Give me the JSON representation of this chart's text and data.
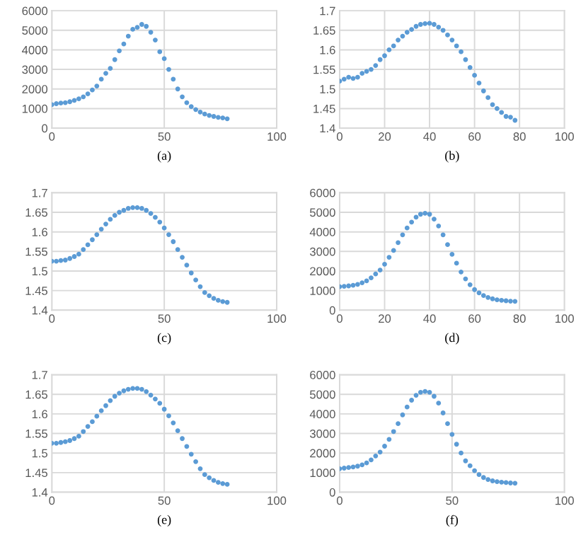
{
  "chart_data": [
    {
      "type": "scatter",
      "xlabel": "(a)",
      "x": [
        0,
        2,
        4,
        6,
        8,
        10,
        12,
        14,
        16,
        18,
        20,
        22,
        24,
        26,
        28,
        30,
        32,
        34,
        36,
        38,
        40,
        42,
        44,
        46,
        48,
        50,
        52,
        54,
        56,
        58,
        60,
        62,
        64,
        66,
        68,
        70,
        72,
        74,
        76,
        78
      ],
      "series": [
        {
          "color": "#5b9bd5",
          "values": [
            1200,
            1250,
            1280,
            1300,
            1350,
            1420,
            1500,
            1600,
            1750,
            1950,
            2150,
            2500,
            2800,
            3050,
            3500,
            3950,
            4300,
            4700,
            5050,
            5150,
            5300,
            5200,
            4900,
            4500,
            3900,
            3550,
            3000,
            2500,
            2000,
            1600,
            1300,
            1100,
            950,
            820,
            720,
            650,
            600,
            550,
            520,
            480
          ]
        }
      ],
      "xlim": [
        0,
        100
      ],
      "xticks": [
        0,
        50,
        100
      ],
      "ylim": [
        0,
        6000
      ],
      "yticks": [
        0,
        1000,
        2000,
        3000,
        4000,
        5000,
        6000
      ],
      "grid": true,
      "marker": "circle"
    },
    {
      "type": "scatter",
      "xlabel": "(b)",
      "x": [
        0,
        2,
        4,
        6,
        8,
        10,
        12,
        14,
        16,
        18,
        20,
        22,
        24,
        26,
        28,
        30,
        32,
        34,
        36,
        38,
        40,
        42,
        44,
        46,
        48,
        50,
        52,
        54,
        56,
        58,
        60,
        62,
        64,
        66,
        68,
        70,
        72,
        74,
        76,
        78
      ],
      "series": [
        {
          "color": "#5b9bd5",
          "values": [
            1.52,
            1.525,
            1.53,
            1.527,
            1.53,
            1.54,
            1.545,
            1.55,
            1.56,
            1.575,
            1.585,
            1.6,
            1.61,
            1.625,
            1.635,
            1.645,
            1.652,
            1.66,
            1.665,
            1.667,
            1.668,
            1.665,
            1.658,
            1.65,
            1.638,
            1.625,
            1.61,
            1.595,
            1.575,
            1.555,
            1.535,
            1.515,
            1.495,
            1.478,
            1.46,
            1.45,
            1.44,
            1.43,
            1.428,
            1.42
          ]
        }
      ],
      "xlim": [
        0,
        100
      ],
      "xticks": [
        0,
        20,
        40,
        60,
        80,
        100
      ],
      "ylim": [
        1.4,
        1.7
      ],
      "yticks": [
        1.4,
        1.45,
        1.5,
        1.55,
        1.6,
        1.65,
        1.7
      ],
      "grid": true,
      "marker": "circle"
    },
    {
      "type": "scatter",
      "xlabel": "(c)",
      "x": [
        0,
        2,
        4,
        6,
        8,
        10,
        12,
        14,
        16,
        18,
        20,
        22,
        24,
        26,
        28,
        30,
        32,
        34,
        36,
        38,
        40,
        42,
        44,
        46,
        48,
        50,
        52,
        54,
        56,
        58,
        60,
        62,
        64,
        66,
        68,
        70,
        72,
        74,
        76,
        78
      ],
      "series": [
        {
          "color": "#5b9bd5",
          "values": [
            1.525,
            1.525,
            1.527,
            1.528,
            1.532,
            1.537,
            1.543,
            1.555,
            1.567,
            1.58,
            1.593,
            1.607,
            1.62,
            1.632,
            1.642,
            1.65,
            1.655,
            1.66,
            1.662,
            1.662,
            1.66,
            1.655,
            1.647,
            1.637,
            1.625,
            1.61,
            1.593,
            1.575,
            1.555,
            1.535,
            1.515,
            1.495,
            1.477,
            1.46,
            1.445,
            1.437,
            1.43,
            1.425,
            1.422,
            1.42
          ]
        }
      ],
      "xlim": [
        0,
        100
      ],
      "xticks": [
        0,
        50,
        100
      ],
      "ylim": [
        1.4,
        1.7
      ],
      "yticks": [
        1.4,
        1.45,
        1.5,
        1.55,
        1.6,
        1.65,
        1.7
      ],
      "grid": true,
      "marker": "circle"
    },
    {
      "type": "scatter",
      "xlabel": "(d)",
      "x": [
        0,
        2,
        4,
        6,
        8,
        10,
        12,
        14,
        16,
        18,
        20,
        22,
        24,
        26,
        28,
        30,
        32,
        34,
        36,
        38,
        40,
        42,
        44,
        46,
        48,
        50,
        52,
        54,
        56,
        58,
        60,
        62,
        64,
        66,
        68,
        70,
        72,
        74,
        76,
        78
      ],
      "series": [
        {
          "color": "#5b9bd5",
          "values": [
            1200,
            1220,
            1240,
            1270,
            1320,
            1400,
            1500,
            1650,
            1850,
            2050,
            2350,
            2700,
            3050,
            3450,
            3850,
            4200,
            4500,
            4750,
            4900,
            4950,
            4900,
            4650,
            4300,
            3850,
            3350,
            2850,
            2400,
            1950,
            1600,
            1300,
            1050,
            880,
            750,
            650,
            580,
            530,
            500,
            480,
            460,
            450
          ]
        }
      ],
      "xlim": [
        0,
        100
      ],
      "xticks": [
        0,
        20,
        40,
        60,
        80,
        100
      ],
      "ylim": [
        0,
        6000
      ],
      "yticks": [
        0,
        1000,
        2000,
        3000,
        4000,
        5000,
        6000
      ],
      "grid": true,
      "marker": "circle"
    },
    {
      "type": "scatter",
      "xlabel": "(e)",
      "x": [
        0,
        2,
        4,
        6,
        8,
        10,
        12,
        14,
        16,
        18,
        20,
        22,
        24,
        26,
        28,
        30,
        32,
        34,
        36,
        38,
        40,
        42,
        44,
        46,
        48,
        50,
        52,
        54,
        56,
        58,
        60,
        62,
        64,
        66,
        68,
        70,
        72,
        74,
        76,
        78
      ],
      "series": [
        {
          "color": "#5b9bd5",
          "values": [
            1.525,
            1.525,
            1.527,
            1.529,
            1.532,
            1.537,
            1.543,
            1.555,
            1.568,
            1.58,
            1.594,
            1.608,
            1.621,
            1.634,
            1.645,
            1.653,
            1.659,
            1.663,
            1.665,
            1.665,
            1.663,
            1.657,
            1.648,
            1.638,
            1.627,
            1.612,
            1.595,
            1.577,
            1.557,
            1.537,
            1.517,
            1.497,
            1.478,
            1.46,
            1.445,
            1.437,
            1.43,
            1.425,
            1.422,
            1.42
          ]
        }
      ],
      "xlim": [
        0,
        100
      ],
      "xticks": [
        0,
        50,
        100
      ],
      "ylim": [
        1.4,
        1.7
      ],
      "yticks": [
        1.4,
        1.45,
        1.5,
        1.55,
        1.6,
        1.65,
        1.7
      ],
      "grid": true,
      "marker": "circle"
    },
    {
      "type": "scatter",
      "xlabel": "(f)",
      "x": [
        0,
        2,
        4,
        6,
        8,
        10,
        12,
        14,
        16,
        18,
        20,
        22,
        24,
        26,
        28,
        30,
        32,
        34,
        36,
        38,
        40,
        42,
        44,
        46,
        48,
        50,
        52,
        54,
        56,
        58,
        60,
        62,
        64,
        66,
        68,
        70,
        72,
        74,
        76,
        78
      ],
      "series": [
        {
          "color": "#5b9bd5",
          "values": [
            1200,
            1230,
            1260,
            1290,
            1330,
            1400,
            1500,
            1650,
            1850,
            2050,
            2350,
            2700,
            3100,
            3500,
            3950,
            4350,
            4700,
            4950,
            5100,
            5150,
            5100,
            4900,
            4550,
            4050,
            3500,
            2950,
            2450,
            2000,
            1600,
            1350,
            1100,
            900,
            750,
            650,
            580,
            540,
            510,
            490,
            470,
            460
          ]
        }
      ],
      "xlim": [
        0,
        100
      ],
      "xticks": [
        0,
        50,
        100
      ],
      "ylim": [
        0,
        6000
      ],
      "yticks": [
        0,
        1000,
        2000,
        3000,
        4000,
        5000,
        6000
      ],
      "grid": true,
      "marker": "circle"
    }
  ]
}
